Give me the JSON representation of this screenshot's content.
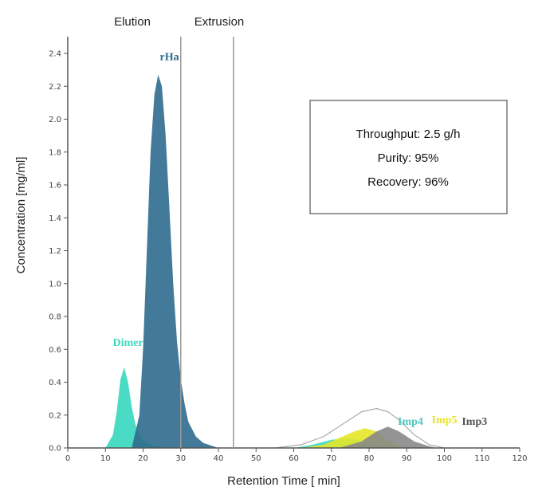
{
  "chart_data": {
    "type": "area",
    "xlabel": "Retention Time [ min]",
    "ylabel": "Concentration [mg/ml]",
    "xlim": [
      0,
      120
    ],
    "ylim": [
      0,
      2.5
    ],
    "xticks": [
      0,
      10,
      20,
      30,
      40,
      50,
      60,
      70,
      80,
      90,
      100,
      110,
      120
    ],
    "yticks": [
      "0.0",
      "0.2",
      "0.4",
      "0.6",
      "0.8",
      "1.0",
      "1.2",
      "1.4",
      "1.6",
      "1.8",
      "2.0",
      "2.2",
      "2.4"
    ],
    "grid": false,
    "regions": [
      {
        "label": "Elution",
        "x": 30
      },
      {
        "label": "Extrusion",
        "x": 44
      }
    ],
    "annotation_box": [
      "Throughput: 2.5 g/h",
      "Purity: 95%",
      "Recovery: 96%"
    ],
    "series": [
      {
        "name": "Dimer",
        "color": "#3fd9c0",
        "points": [
          [
            10,
            0
          ],
          [
            12,
            0.08
          ],
          [
            13,
            0.22
          ],
          [
            14,
            0.42
          ],
          [
            15,
            0.49
          ],
          [
            16,
            0.4
          ],
          [
            17,
            0.25
          ],
          [
            18,
            0.14
          ],
          [
            19,
            0.08
          ],
          [
            20,
            0.05
          ],
          [
            22,
            0.02
          ],
          [
            26,
            0
          ]
        ]
      },
      {
        "name": "rHa",
        "color": "#2f6b8f",
        "points": [
          [
            17,
            0
          ],
          [
            19,
            0.2
          ],
          [
            20,
            0.6
          ],
          [
            21,
            1.2
          ],
          [
            22,
            1.8
          ],
          [
            23,
            2.15
          ],
          [
            24,
            2.27
          ],
          [
            25,
            2.2
          ],
          [
            26,
            1.9
          ],
          [
            27,
            1.45
          ],
          [
            28,
            1.0
          ],
          [
            29,
            0.65
          ],
          [
            30,
            0.42
          ],
          [
            31,
            0.27
          ],
          [
            32,
            0.16
          ],
          [
            34,
            0.07
          ],
          [
            36,
            0.03
          ],
          [
            40,
            0
          ]
        ]
      },
      {
        "name": "Imp4",
        "color": "#3fd9c0",
        "points": [
          [
            60,
            0
          ],
          [
            65,
            0.02
          ],
          [
            70,
            0.05
          ],
          [
            75,
            0.06
          ],
          [
            80,
            0.03
          ],
          [
            85,
            0
          ]
        ]
      },
      {
        "name": "Imp5",
        "color": "#e6e628",
        "points": [
          [
            62,
            0
          ],
          [
            68,
            0.02
          ],
          [
            72,
            0.06
          ],
          [
            76,
            0.1
          ],
          [
            79,
            0.12
          ],
          [
            82,
            0.1
          ],
          [
            85,
            0.05
          ],
          [
            88,
            0.01
          ],
          [
            90,
            0
          ]
        ]
      },
      {
        "name": "Imp3",
        "color": "#888888",
        "points": [
          [
            72,
            0
          ],
          [
            78,
            0.04
          ],
          [
            82,
            0.1
          ],
          [
            85,
            0.13
          ],
          [
            88,
            0.1
          ],
          [
            92,
            0.04
          ],
          [
            96,
            0.01
          ],
          [
            98,
            0
          ]
        ]
      }
    ],
    "total_outline": [
      [
        55,
        0
      ],
      [
        62,
        0.02
      ],
      [
        68,
        0.07
      ],
      [
        74,
        0.16
      ],
      [
        78,
        0.22
      ],
      [
        82,
        0.24
      ],
      [
        85,
        0.22
      ],
      [
        88,
        0.17
      ],
      [
        92,
        0.08
      ],
      [
        96,
        0.02
      ],
      [
        100,
        0
      ]
    ],
    "peak_labels": [
      {
        "text": "Dimer",
        "x": 16,
        "y": 0.62,
        "color": "#3fd9c0"
      },
      {
        "text": "rHa",
        "x": 27,
        "y": 2.36,
        "color": "#2f6b8f"
      },
      {
        "text": "Imp4",
        "x": 91,
        "y": 0.14,
        "color": "#4fc8c0"
      },
      {
        "text": "Imp5",
        "x": 100,
        "y": 0.15,
        "color": "#e6e628"
      },
      {
        "text": "Imp3",
        "x": 108,
        "y": 0.14,
        "color": "#555555"
      }
    ]
  }
}
